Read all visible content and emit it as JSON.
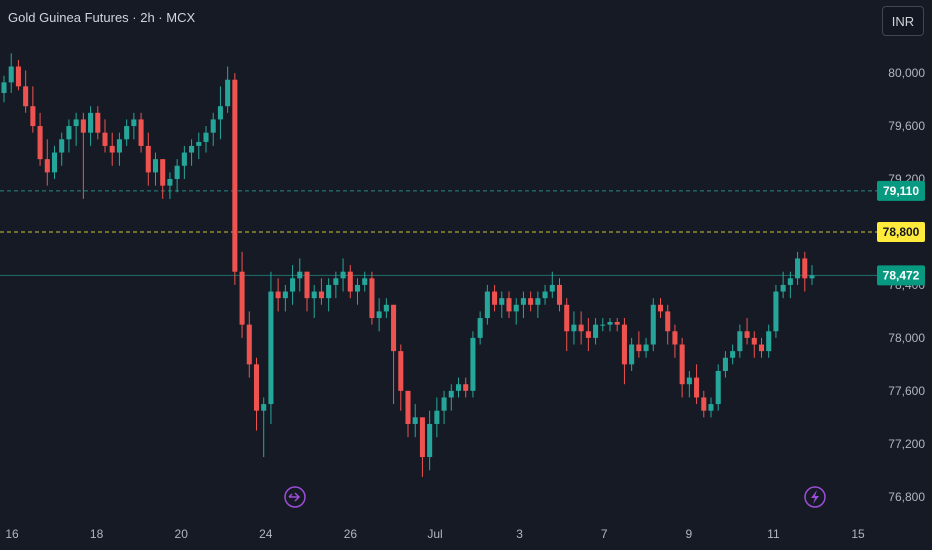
{
  "header": {
    "title": "Gold Guinea Futures · 2h · MCX",
    "currency": "INR"
  },
  "colors": {
    "background": "#161a25",
    "up": "#26a69a",
    "down": "#ef5350",
    "level_79110": "#089981",
    "level_78800": "#ffeb3b",
    "event_icon": "#9c4dd8"
  },
  "price_labels": [
    {
      "value": 79110,
      "text": "79,110",
      "line_color": "#26a69a",
      "bg": "#089981",
      "fg": "#ffffff",
      "dash": true
    },
    {
      "value": 78800,
      "text": "78,800",
      "line_color": "#ffeb3b",
      "bg": "#ffeb3b",
      "fg": "#131722",
      "dash": true
    },
    {
      "value": 78472,
      "text": "78,472",
      "line_color": "#26a69a",
      "bg": "#089981",
      "fg": "#ffffff",
      "dash": false
    }
  ],
  "events": [
    {
      "icon": "split-arrow-icon",
      "near_x": "Jun 25"
    },
    {
      "icon": "lightning-icon",
      "near_x": "Jul 12"
    }
  ],
  "chart_data": {
    "type": "candlestick",
    "title": "Gold Guinea Futures · 2h · MCX",
    "ylim": [
      76700,
      80250
    ],
    "y_ticks": [
      76800,
      77200,
      77600,
      78000,
      78400,
      78800,
      79200,
      79600,
      80000
    ],
    "y_tick_labels": [
      "76,800",
      "77,200",
      "77,600",
      "78,000",
      "78,400",
      "78,800",
      "79,200",
      "79,600",
      "80,000"
    ],
    "x_tick_labels": [
      "16",
      "18",
      "20",
      "24",
      "26",
      "Jul",
      "3",
      "7",
      "9",
      "11",
      "15"
    ],
    "grid": false,
    "candles": [
      [
        79850,
        79980,
        79780,
        79930
      ],
      [
        79930,
        80150,
        79850,
        80050
      ],
      [
        80050,
        80100,
        79870,
        79900
      ],
      [
        79900,
        80020,
        79700,
        79750
      ],
      [
        79750,
        79900,
        79550,
        79600
      ],
      [
        79600,
        79700,
        79300,
        79350
      ],
      [
        79350,
        79500,
        79150,
        79250
      ],
      [
        79250,
        79450,
        79200,
        79400
      ],
      [
        79400,
        79550,
        79300,
        79500
      ],
      [
        79500,
        79650,
        79400,
        79600
      ],
      [
        79600,
        79700,
        79450,
        79650
      ],
      [
        79650,
        79700,
        79050,
        79550
      ],
      [
        79550,
        79750,
        79450,
        79700
      ],
      [
        79700,
        79750,
        79500,
        79550
      ],
      [
        79550,
        79650,
        79400,
        79450
      ],
      [
        79450,
        79550,
        79300,
        79400
      ],
      [
        79400,
        79550,
        79300,
        79500
      ],
      [
        79500,
        79650,
        79450,
        79600
      ],
      [
        79600,
        79700,
        79500,
        79650
      ],
      [
        79650,
        79700,
        79400,
        79450
      ],
      [
        79450,
        79550,
        79150,
        79250
      ],
      [
        79250,
        79400,
        79150,
        79350
      ],
      [
        79350,
        79350,
        79050,
        79150
      ],
      [
        79150,
        79250,
        79050,
        79200
      ],
      [
        79200,
        79350,
        79100,
        79300
      ],
      [
        79300,
        79450,
        79200,
        79400
      ],
      [
        79400,
        79500,
        79300,
        79450
      ],
      [
        79450,
        79550,
        79350,
        79480
      ],
      [
        79480,
        79600,
        79400,
        79550
      ],
      [
        79550,
        79700,
        79450,
        79650
      ],
      [
        79650,
        79900,
        79500,
        79750
      ],
      [
        79750,
        80050,
        79700,
        79950
      ],
      [
        79950,
        80000,
        78400,
        78500
      ],
      [
        78500,
        78650,
        78000,
        78100
      ],
      [
        78100,
        78200,
        77700,
        77800
      ],
      [
        77800,
        77850,
        77300,
        77450
      ],
      [
        77450,
        77550,
        77100,
        77500
      ],
      [
        77500,
        78500,
        77350,
        78350
      ],
      [
        78350,
        78450,
        78200,
        78300
      ],
      [
        78300,
        78400,
        78200,
        78350
      ],
      [
        78350,
        78550,
        78250,
        78450
      ],
      [
        78450,
        78600,
        78350,
        78500
      ],
      [
        78500,
        78500,
        78200,
        78300
      ],
      [
        78300,
        78400,
        78150,
        78350
      ],
      [
        78350,
        78450,
        78250,
        78300
      ],
      [
        78300,
        78450,
        78200,
        78400
      ],
      [
        78400,
        78500,
        78300,
        78450
      ],
      [
        78450,
        78600,
        78350,
        78500
      ],
      [
        78500,
        78550,
        78300,
        78350
      ],
      [
        78350,
        78450,
        78250,
        78400
      ],
      [
        78400,
        78500,
        78350,
        78450
      ],
      [
        78450,
        78500,
        78100,
        78150
      ],
      [
        78150,
        78300,
        78050,
        78200
      ],
      [
        78200,
        78300,
        78150,
        78250
      ],
      [
        78250,
        78250,
        77500,
        77900
      ],
      [
        77900,
        77950,
        77450,
        77600
      ],
      [
        77600,
        77600,
        77250,
        77350
      ],
      [
        77350,
        77500,
        77250,
        77400
      ],
      [
        77400,
        77400,
        76950,
        77100
      ],
      [
        77100,
        77450,
        77000,
        77350
      ],
      [
        77350,
        77550,
        77250,
        77450
      ],
      [
        77450,
        77600,
        77350,
        77550
      ],
      [
        77550,
        77650,
        77450,
        77600
      ],
      [
        77600,
        77700,
        77550,
        77650
      ],
      [
        77650,
        77700,
        77550,
        77600
      ],
      [
        77600,
        78050,
        77550,
        78000
      ],
      [
        78000,
        78200,
        77950,
        78150
      ],
      [
        78150,
        78400,
        78100,
        78350
      ],
      [
        78350,
        78400,
        78200,
        78250
      ],
      [
        78250,
        78350,
        78150,
        78300
      ],
      [
        78300,
        78350,
        78150,
        78200
      ],
      [
        78200,
        78300,
        78100,
        78250
      ],
      [
        78250,
        78350,
        78150,
        78300
      ],
      [
        78300,
        78350,
        78200,
        78250
      ],
      [
        78250,
        78350,
        78150,
        78300
      ],
      [
        78300,
        78400,
        78250,
        78350
      ],
      [
        78350,
        78500,
        78300,
        78400
      ],
      [
        78400,
        78450,
        78200,
        78250
      ],
      [
        78250,
        78300,
        77900,
        78050
      ],
      [
        78050,
        78200,
        77950,
        78100
      ],
      [
        78100,
        78200,
        77950,
        78050
      ],
      [
        78050,
        78150,
        77900,
        78000
      ],
      [
        78000,
        78150,
        77950,
        78100
      ],
      [
        78100,
        78150,
        78050,
        78100
      ],
      [
        78100,
        78150,
        78050,
        78120
      ],
      [
        78120,
        78150,
        78050,
        78100
      ],
      [
        78100,
        78150,
        77650,
        77800
      ],
      [
        77800,
        78000,
        77750,
        77950
      ],
      [
        77950,
        78050,
        77850,
        77900
      ],
      [
        77900,
        78000,
        77850,
        77950
      ],
      [
        77950,
        78300,
        77900,
        78250
      ],
      [
        78250,
        78300,
        78150,
        78200
      ],
      [
        78200,
        78250,
        77950,
        78050
      ],
      [
        78050,
        78100,
        77850,
        77950
      ],
      [
        77950,
        78000,
        77550,
        77650
      ],
      [
        77650,
        77750,
        77550,
        77700
      ],
      [
        77700,
        77800,
        77500,
        77550
      ],
      [
        77550,
        77600,
        77400,
        77450
      ],
      [
        77450,
        77550,
        77400,
        77500
      ],
      [
        77500,
        77800,
        77450,
        77750
      ],
      [
        77750,
        77900,
        77700,
        77850
      ],
      [
        77850,
        77950,
        77800,
        77900
      ],
      [
        77900,
        78100,
        77850,
        78050
      ],
      [
        78050,
        78150,
        77950,
        78000
      ],
      [
        78000,
        78050,
        77850,
        77950
      ],
      [
        77950,
        78000,
        77850,
        77900
      ],
      [
        77900,
        78100,
        77850,
        78050
      ],
      [
        78050,
        78400,
        78000,
        78350
      ],
      [
        78350,
        78500,
        78300,
        78400
      ],
      [
        78400,
        78500,
        78300,
        78450
      ],
      [
        78450,
        78650,
        78400,
        78600
      ],
      [
        78600,
        78650,
        78350,
        78450
      ],
      [
        78450,
        78550,
        78400,
        78472
      ]
    ]
  }
}
